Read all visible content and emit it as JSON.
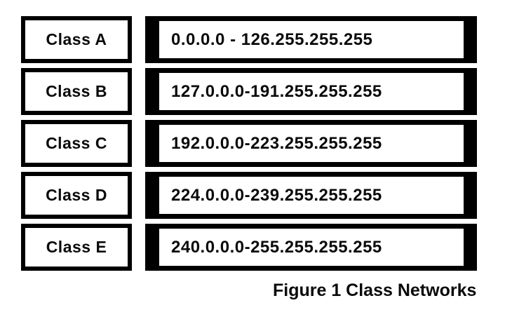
{
  "figure": {
    "caption": "Figure 1 Class Networks"
  },
  "classes": [
    {
      "label": "Class A",
      "range": "0.0.0.0 - 126.255.255.255"
    },
    {
      "label": "Class B",
      "range": "127.0.0.0-191.255.255.255"
    },
    {
      "label": "Class C",
      "range": "192.0.0.0-223.255.255.255"
    },
    {
      "label": "Class D",
      "range": "224.0.0.0-239.255.255.255"
    },
    {
      "label": "Class E",
      "range": "240.0.0.0-255.255.255.255"
    }
  ],
  "colors": {
    "border": "#000000",
    "background": "#ffffff",
    "text": "#0a0a0a"
  }
}
